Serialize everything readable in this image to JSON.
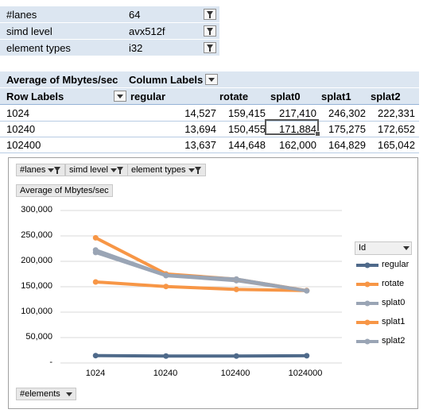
{
  "filters": [
    {
      "label": "#lanes",
      "value": "64"
    },
    {
      "label": "simd level",
      "value": "avx512f"
    },
    {
      "label": "element types",
      "value": "i32"
    }
  ],
  "pivot": {
    "header": {
      "title": "Average of Mbytes/sec",
      "column_labels": "Column Labels"
    },
    "subheader": {
      "row_labels": "Row Labels",
      "columns": [
        "regular",
        "rotate",
        "splat0",
        "splat1",
        "splat2"
      ]
    },
    "rows": [
      {
        "label": "1024",
        "values": [
          "14,527",
          "159,415",
          "217,410",
          "246,302",
          "222,331"
        ]
      },
      {
        "label": "10240",
        "values": [
          "13,694",
          "150,455",
          "171,884",
          "175,275",
          "172,652"
        ]
      },
      {
        "label": "102400",
        "values": [
          "13,637",
          "144,648",
          "162,000",
          "164,829",
          "165,042"
        ]
      }
    ]
  },
  "chart_buttons": {
    "lanes": "#lanes",
    "simd_level": "simd level",
    "element_types": "element types",
    "ytitle": "Average of Mbytes/sec",
    "elements": "#elements",
    "legend_title": "Id"
  },
  "chart_data": {
    "type": "line",
    "categories": [
      "1024",
      "10240",
      "102400",
      "1024000"
    ],
    "ylabel": "Average of Mbytes/sec",
    "xlabel": "#elements",
    "ylim": [
      0,
      300000
    ],
    "yticks": [
      "300,000",
      "250,000",
      "200,000",
      "150,000",
      "100,000",
      "50,000",
      "-"
    ],
    "legend_position": "right",
    "grid": true,
    "series": [
      {
        "name": "regular",
        "color": "#4f6a8a",
        "values": [
          14527,
          13694,
          13637,
          14200
        ]
      },
      {
        "name": "rotate",
        "color": "#f79646",
        "values": [
          159415,
          150455,
          144648,
          142500
        ]
      },
      {
        "name": "splat0",
        "color": "#9aa5b5",
        "values": [
          217410,
          171884,
          162000,
          142000
        ]
      },
      {
        "name": "splat1",
        "color": "#f79646",
        "values": [
          246302,
          175275,
          164829,
          142300
        ]
      },
      {
        "name": "splat2",
        "color": "#9aa5b5",
        "values": [
          222331,
          172652,
          165042,
          142000
        ]
      }
    ]
  }
}
